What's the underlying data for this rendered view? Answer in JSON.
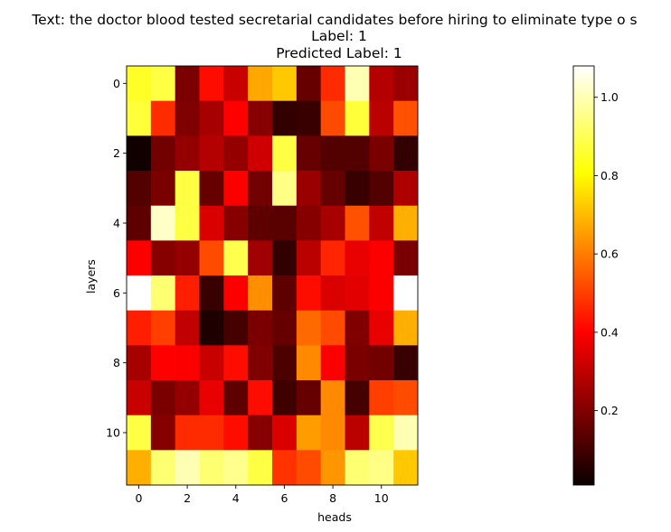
{
  "chart_data": {
    "type": "heatmap",
    "title_lines": [
      "Text: the doctor blood tested secretarial candidates before hiring to eliminate type o s",
      "Label: 1",
      "Predicted Label: 1"
    ],
    "xlabel": "heads",
    "ylabel": "layers",
    "x_ticks": [
      0,
      2,
      4,
      6,
      8,
      10
    ],
    "y_ticks": [
      0,
      2,
      4,
      6,
      8,
      10
    ],
    "colormap": "hot",
    "colorbar": {
      "vmin": 0.01,
      "vmax": 1.08,
      "ticks": [
        0.2,
        0.4,
        0.6,
        0.8,
        1.0
      ],
      "tick_labels": [
        "0.2",
        "0.4",
        "0.6",
        "0.8",
        "1.0"
      ]
    },
    "values": [
      [
        0.85,
        0.88,
        0.18,
        0.42,
        0.3,
        0.67,
        0.72,
        0.15,
        0.47,
        1.0,
        0.27,
        0.23
      ],
      [
        0.87,
        0.47,
        0.19,
        0.25,
        0.39,
        0.2,
        0.07,
        0.08,
        0.52,
        0.87,
        0.28,
        0.53
      ],
      [
        0.02,
        0.17,
        0.22,
        0.27,
        0.22,
        0.31,
        0.88,
        0.15,
        0.12,
        0.12,
        0.18,
        0.07
      ],
      [
        0.12,
        0.18,
        0.88,
        0.15,
        0.38,
        0.17,
        0.95,
        0.23,
        0.15,
        0.08,
        0.12,
        0.26
      ],
      [
        0.14,
        1.02,
        0.88,
        0.33,
        0.2,
        0.14,
        0.13,
        0.2,
        0.25,
        0.53,
        0.29,
        0.68
      ],
      [
        0.38,
        0.2,
        0.22,
        0.52,
        0.89,
        0.24,
        0.07,
        0.28,
        0.46,
        0.35,
        0.38,
        0.18
      ],
      [
        1.08,
        0.93,
        0.45,
        0.08,
        0.38,
        0.63,
        0.14,
        0.42,
        0.33,
        0.34,
        0.38,
        1.08
      ],
      [
        0.45,
        0.5,
        0.29,
        0.04,
        0.1,
        0.18,
        0.15,
        0.57,
        0.52,
        0.19,
        0.35,
        0.68
      ],
      [
        0.25,
        0.4,
        0.38,
        0.3,
        0.42,
        0.19,
        0.11,
        0.62,
        0.38,
        0.18,
        0.17,
        0.08
      ],
      [
        0.3,
        0.18,
        0.22,
        0.35,
        0.14,
        0.42,
        0.09,
        0.15,
        0.62,
        0.1,
        0.5,
        0.52
      ],
      [
        0.88,
        0.2,
        0.47,
        0.47,
        0.42,
        0.2,
        0.33,
        0.65,
        0.62,
        0.28,
        0.89,
        1.0
      ],
      [
        0.68,
        0.93,
        1.0,
        0.93,
        0.96,
        0.88,
        0.48,
        0.52,
        0.64,
        0.93,
        0.95,
        0.72
      ]
    ]
  }
}
